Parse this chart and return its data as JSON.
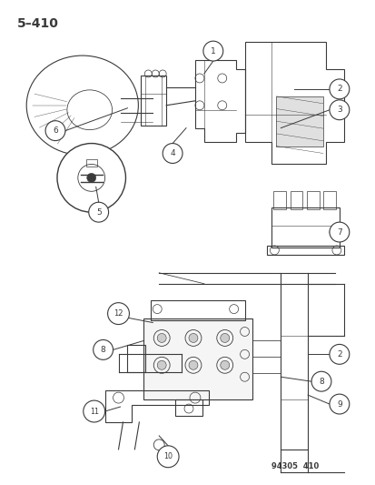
{
  "title": "5–410",
  "footer": "94305  410",
  "bg_color": "#ffffff",
  "lc": "#3a3a3a",
  "fig_width": 4.14,
  "fig_height": 5.33,
  "dpi": 100
}
